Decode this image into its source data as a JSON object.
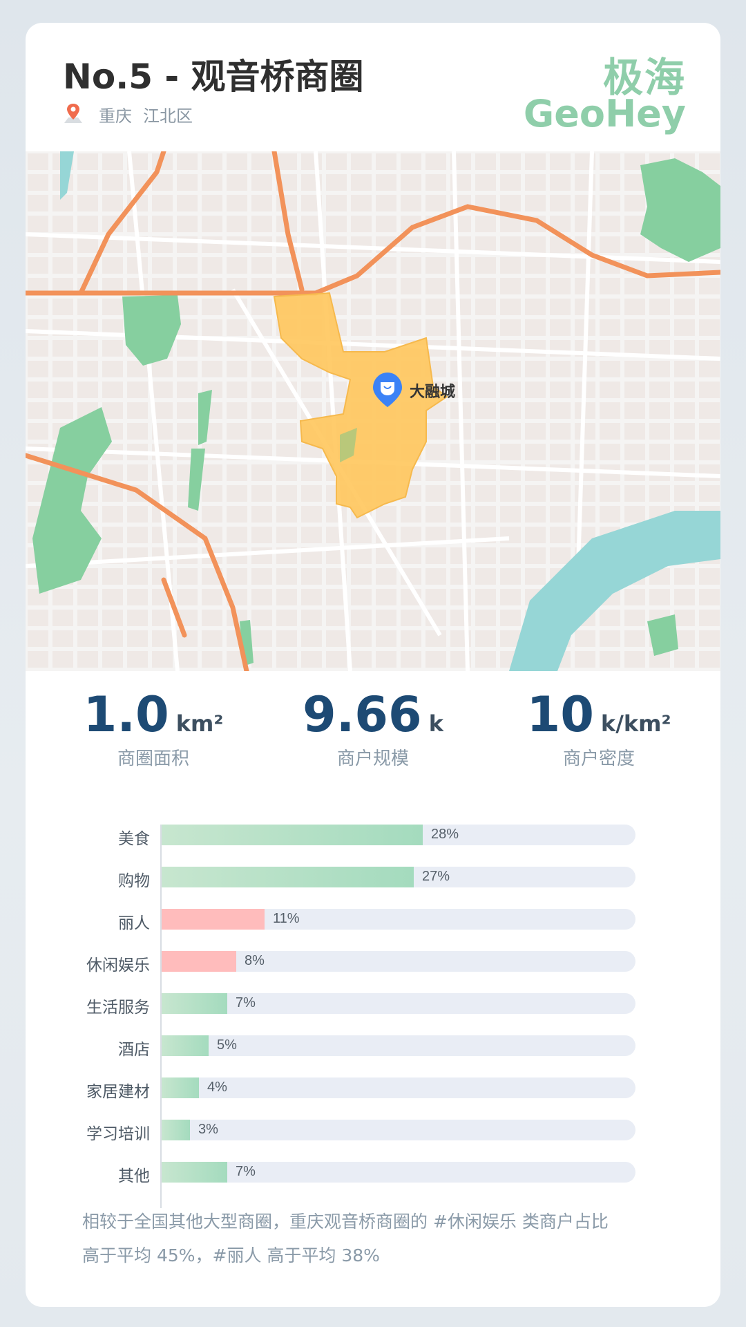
{
  "header": {
    "title": "No.5 -  观音桥商圈",
    "location": {
      "city": "重庆",
      "district": "江北区"
    },
    "brand_cn": "极海",
    "brand_en": "GeoHey"
  },
  "map": {
    "poi_label": "大融城",
    "colors": {
      "area": "#ffc65c",
      "green": "#86cf9f",
      "water": "#96d6d6",
      "road": "#f2925a",
      "poi": "#3b82f6"
    }
  },
  "stats": [
    {
      "value": "1.0",
      "unit": "km²",
      "label": "商圈面积"
    },
    {
      "value": "9.66",
      "unit": "k",
      "label": "商户规模"
    },
    {
      "value": "10",
      "unit": "k/km²",
      "label": "商户密度"
    }
  ],
  "chart_data": {
    "type": "bar",
    "orientation": "horizontal",
    "categories": [
      "美食",
      "购物",
      "丽人",
      "休闲娱乐",
      "生活服务",
      "酒店",
      "家居建材",
      "学习培训",
      "其他"
    ],
    "values": [
      28,
      27,
      11,
      8,
      7,
      5,
      4,
      3,
      7
    ],
    "value_labels": [
      "28%",
      "27%",
      "11%",
      "8%",
      "7%",
      "5%",
      "4%",
      "3%",
      "7%"
    ],
    "highlight": [
      false,
      false,
      true,
      true,
      false,
      false,
      false,
      false,
      false
    ],
    "colors": {
      "normal": "#a8dcbf",
      "highlight": "#ffbcbc",
      "track": "#e9edf5"
    }
  },
  "summary": {
    "line1": "相较于全国其他大型商圈，重庆观音桥商圈的 #休闲娱乐 类商户占比",
    "line2": "高于平均 45%，#丽人 高于平均 38%"
  }
}
